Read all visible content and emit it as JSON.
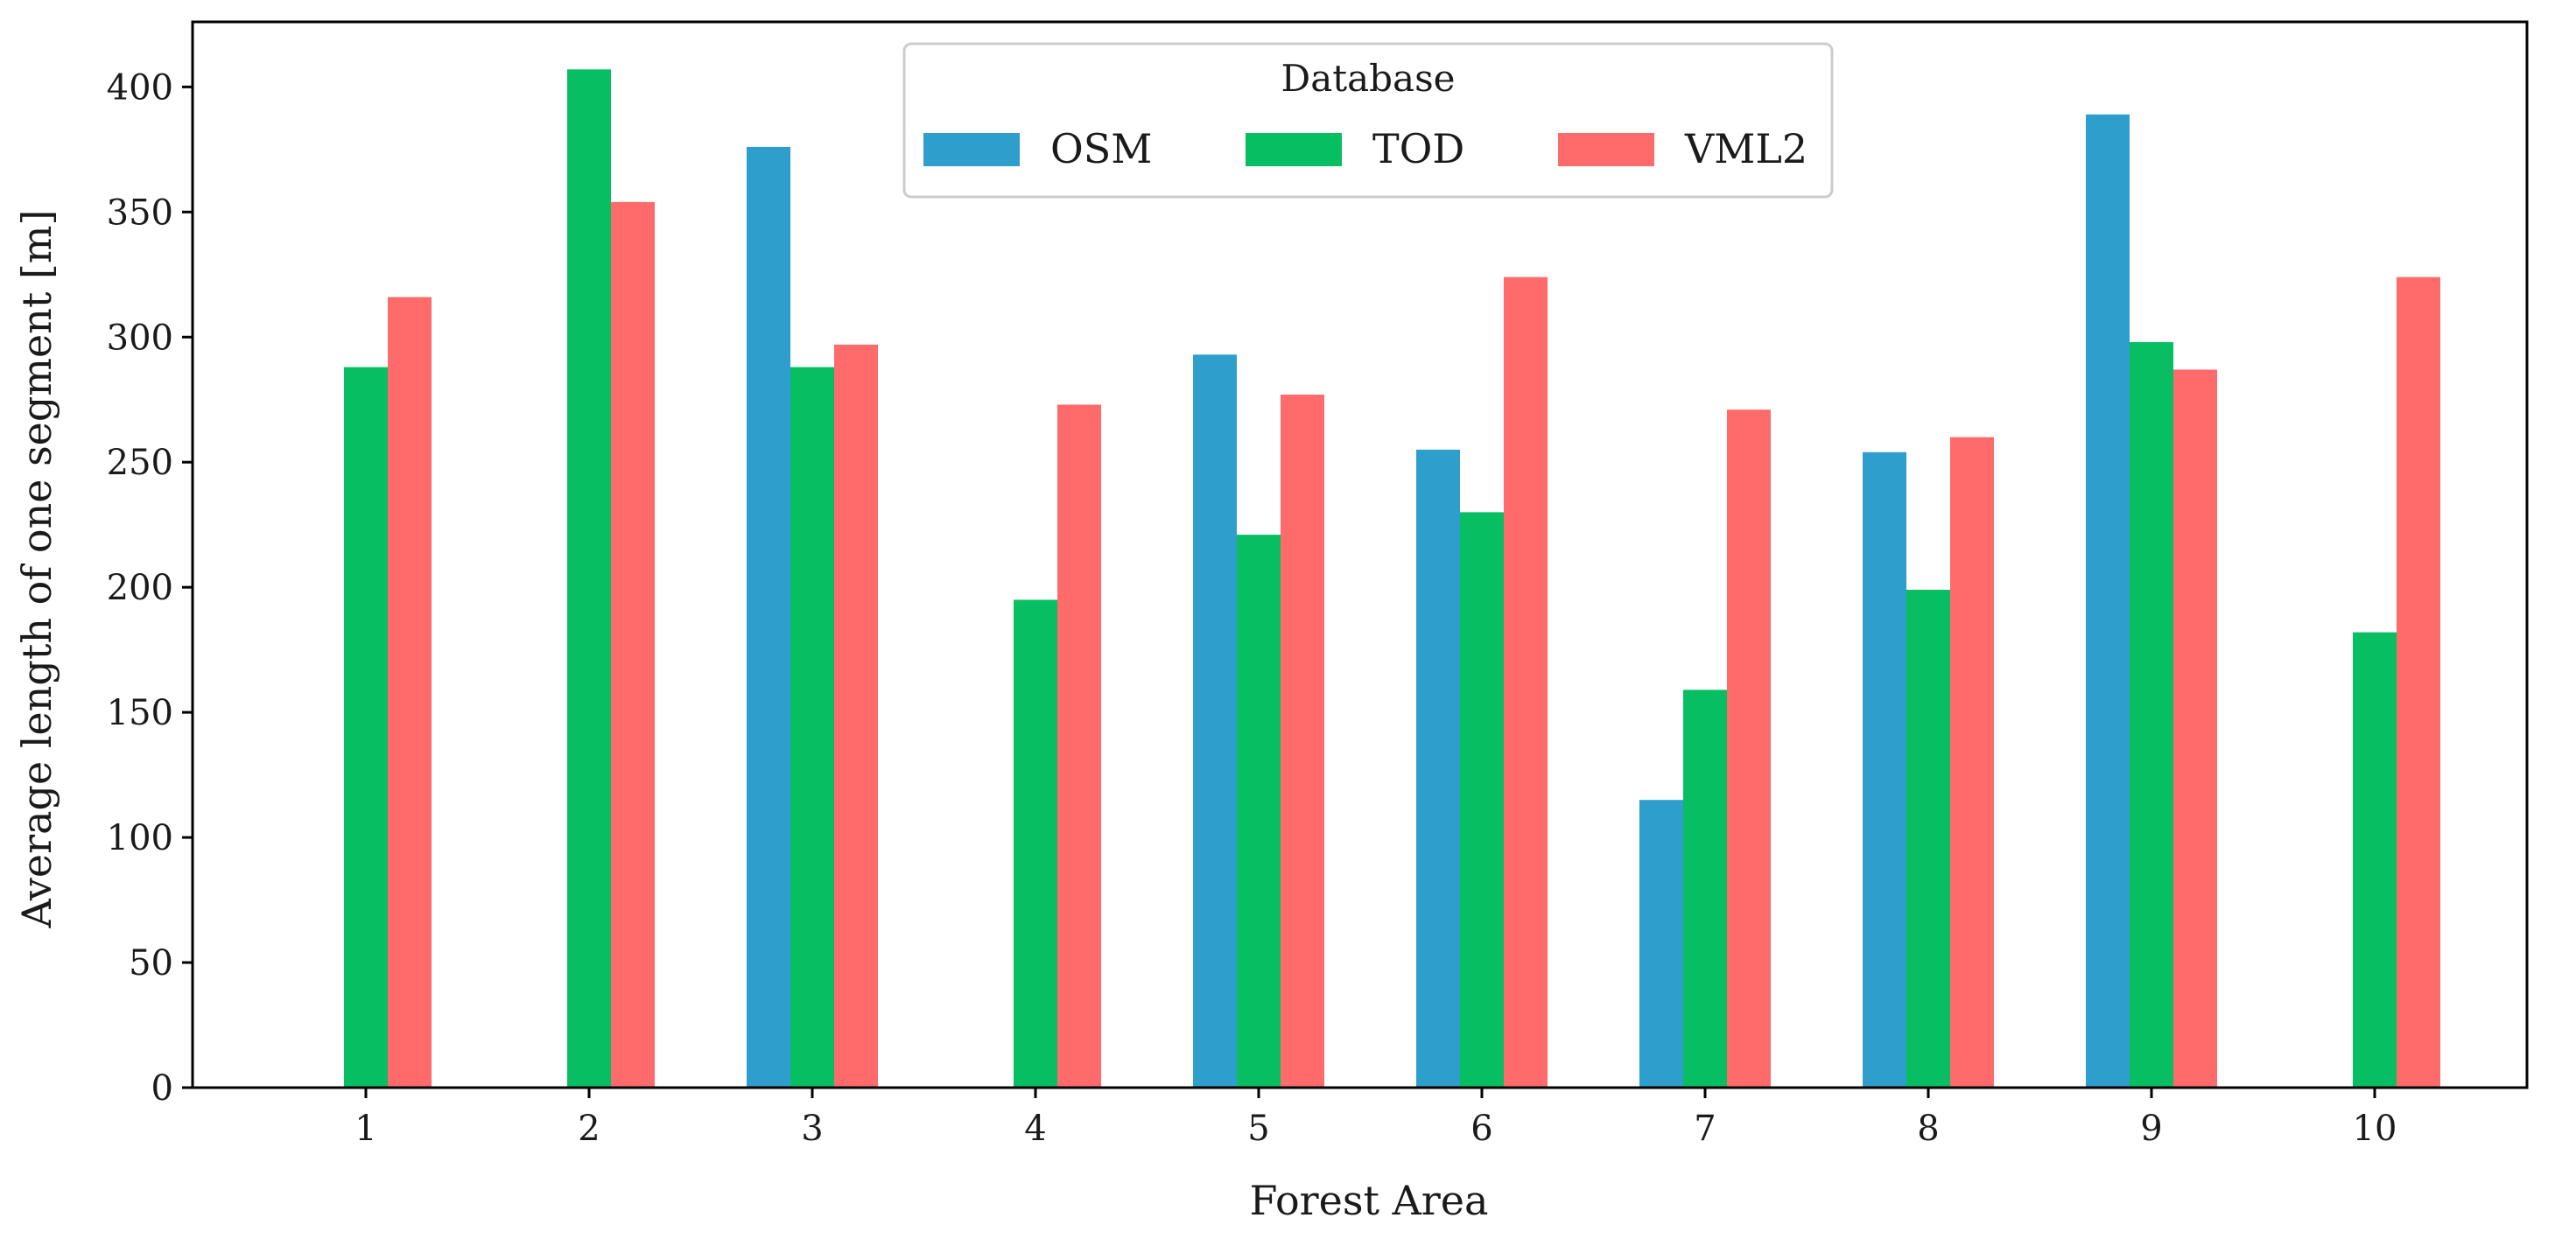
{
  "chart_data": {
    "type": "bar",
    "title": "",
    "xlabel": "Forest Area",
    "ylabel": "Average length of one segment [m]",
    "categories": [
      "1",
      "2",
      "3",
      "4",
      "5",
      "6",
      "7",
      "8",
      "9",
      "10"
    ],
    "series": [
      {
        "name": "OSM",
        "color": "#2e9fcd",
        "values": [
          null,
          null,
          376,
          null,
          293,
          255,
          115,
          254,
          389,
          null
        ]
      },
      {
        "name": "TOD",
        "color": "#07be62",
        "values": [
          288,
          407,
          288,
          195,
          221,
          230,
          159,
          199,
          298,
          182
        ]
      },
      {
        "name": "VML2",
        "color": "#ff6a6a",
        "values": [
          316,
          354,
          297,
          273,
          277,
          324,
          271,
          260,
          287,
          324
        ]
      }
    ],
    "ylim": [
      0,
      426
    ],
    "yticks": [
      0,
      50,
      100,
      150,
      200,
      250,
      300,
      350,
      400
    ],
    "legend": {
      "title": "Database",
      "placement": "upper-center"
    },
    "grid": false
  }
}
